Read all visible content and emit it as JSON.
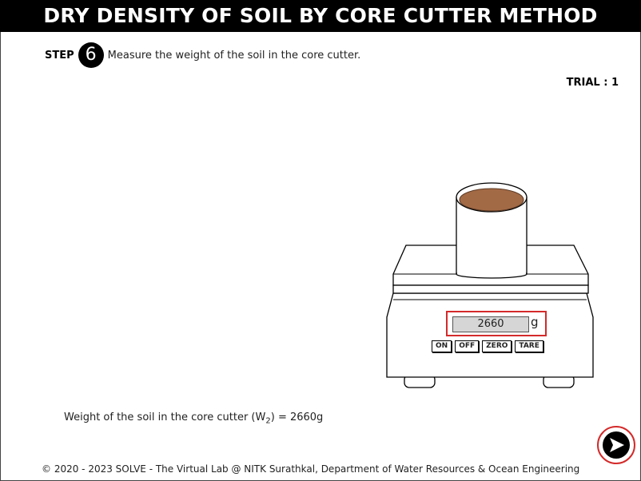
{
  "header": {
    "title": "DRY DENSITY OF SOIL BY CORE CUTTER METHOD"
  },
  "step": {
    "label": "STEP",
    "number": "6",
    "instruction": "Measure the weight of the soil in the core cutter."
  },
  "trial": {
    "text": "TRIAL : 1"
  },
  "balance": {
    "reading": "2660",
    "unit": "g",
    "buttons": [
      "ON",
      "OFF",
      "ZERO",
      "TARE"
    ]
  },
  "result": {
    "prefix": "Weight of the soil in the core cutter (W",
    "subscript": "2",
    "suffix": ") = 2660g"
  },
  "navigation": {
    "next_icon": "next-arrow-icon"
  },
  "colors": {
    "highlight": "#d42a2a",
    "soil": "#a36a46",
    "title_bg": "#000000"
  },
  "footer": {
    "text": "© 2020 - 2023 SOLVE - The Virtual Lab @ NITK Surathkal, Department of Water Resources & Ocean Engineering"
  }
}
